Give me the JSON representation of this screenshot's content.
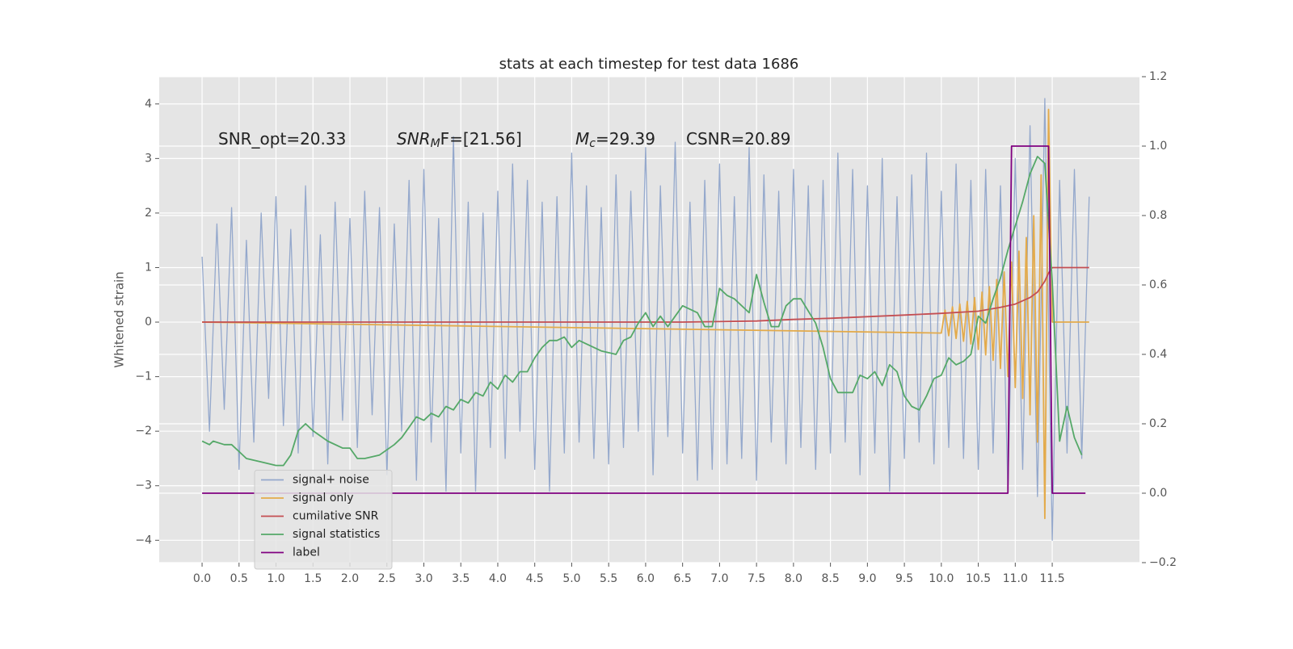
{
  "chart_data": {
    "type": "line",
    "title": "stats at each timestep for test data 1686",
    "ylabel": "Whitened strain",
    "annotations": [
      [
        "SNR_opt=20.33"
      ],
      [
        "SNR",
        "M",
        "F=[21.56]"
      ],
      [
        "M",
        "c",
        "=29.39"
      ],
      [
        "CSNR=20.89"
      ]
    ],
    "xlim": [
      -0.58,
      12.68
    ],
    "ylim": [
      -4.41,
      4.5
    ],
    "y2lim": [
      -0.2,
      1.2
    ],
    "xticks": [
      {
        "value": 0,
        "label": "0.0"
      },
      0.5,
      {
        "value": 1,
        "label": "1.0"
      },
      1.5,
      {
        "value": 2,
        "label": "2.0"
      },
      2.5,
      {
        "value": 3,
        "label": "3.0"
      },
      3.5,
      {
        "value": 4,
        "label": "4.0"
      },
      4.5,
      {
        "value": 5,
        "label": "5.0"
      },
      5.5,
      {
        "value": 6,
        "label": "6.0"
      },
      6.5,
      {
        "value": 7,
        "label": "7.0"
      },
      7.5,
      {
        "value": 8,
        "label": "8.0"
      },
      8.5,
      {
        "value": 9,
        "label": "9.0"
      },
      9.5,
      {
        "value": 10,
        "label": "10.0"
      },
      10.5,
      {
        "value": 11,
        "label": "11.0"
      },
      11.5
    ],
    "yticks": [
      {
        "value": -4,
        "label": "−4"
      },
      {
        "value": -3,
        "label": "−3"
      },
      {
        "value": -2,
        "label": "−2"
      },
      {
        "value": -1,
        "label": "−1"
      },
      0,
      1,
      2,
      3,
      4
    ],
    "y2ticks": [
      {
        "value": -0.2,
        "label": "−0.2"
      },
      {
        "value": 0,
        "label": "0.0"
      },
      0.2,
      0.4,
      0.6,
      0.8,
      {
        "value": 1,
        "label": "1.0"
      },
      1.2
    ],
    "grid": true,
    "legend": "lower left",
    "series": [
      {
        "name": "signal+ noise",
        "color": "#94a8cc",
        "x": [
          0,
          0.1,
          0.2,
          0.3,
          0.4,
          0.5,
          0.6,
          0.7,
          0.8,
          0.9,
          1,
          1.1,
          1.2,
          1.3,
          1.4,
          1.5,
          1.6,
          1.7,
          1.8,
          1.9,
          2,
          2.1,
          2.2,
          2.3,
          2.4,
          2.5,
          2.6,
          2.7,
          2.8,
          2.9,
          3,
          3.1,
          3.2,
          3.3,
          3.4,
          3.5,
          3.6,
          3.7,
          3.8,
          3.9,
          4,
          4.1,
          4.2,
          4.3,
          4.4,
          4.5,
          4.6,
          4.7,
          4.8,
          4.9,
          5,
          5.1,
          5.2,
          5.3,
          5.4,
          5.5,
          5.6,
          5.7,
          5.8,
          5.9,
          6,
          6.1,
          6.2,
          6.3,
          6.4,
          6.5,
          6.6,
          6.7,
          6.8,
          6.9,
          7,
          7.1,
          7.2,
          7.3,
          7.4,
          7.5,
          7.6,
          7.7,
          7.8,
          7.9,
          8,
          8.1,
          8.2,
          8.3,
          8.4,
          8.5,
          8.6,
          8.7,
          8.8,
          8.9,
          9,
          9.1,
          9.2,
          9.3,
          9.4,
          9.5,
          9.6,
          9.7,
          9.8,
          9.9,
          10,
          10.1,
          10.2,
          10.3,
          10.4,
          10.5,
          10.6,
          10.7,
          10.8,
          10.9,
          11,
          11.1,
          11.2,
          11.3,
          11.4,
          11.5,
          11.6,
          11.7,
          11.8,
          11.9,
          12
        ],
        "values": [
          1.2,
          -2.0,
          1.8,
          -1.6,
          2.1,
          -2.7,
          1.5,
          -2.2,
          2.0,
          -1.4,
          2.3,
          -1.9,
          1.7,
          -2.4,
          2.5,
          -2.1,
          1.6,
          -2.6,
          2.2,
          -1.8,
          1.9,
          -2.3,
          2.4,
          -1.7,
          2.1,
          -2.8,
          1.8,
          -2.0,
          2.6,
          -2.9,
          2.8,
          -2.2,
          1.9,
          -3.1,
          3.4,
          -2.4,
          2.2,
          -3.1,
          2.0,
          -2.3,
          2.4,
          -2.5,
          2.9,
          -2.0,
          2.6,
          -2.7,
          2.2,
          -3.1,
          2.3,
          -2.4,
          3.1,
          -2.2,
          2.5,
          -2.5,
          2.1,
          -2.6,
          2.7,
          -2.3,
          2.4,
          -2.0,
          3.2,
          -2.8,
          2.5,
          -2.1,
          3.3,
          -2.4,
          2.2,
          -2.9,
          2.6,
          -2.7,
          2.9,
          -2.6,
          2.3,
          -2.5,
          3.2,
          -2.9,
          2.7,
          -2.2,
          2.4,
          -2.6,
          2.8,
          -2.3,
          2.5,
          -2.7,
          2.6,
          -2.4,
          3.1,
          -2.2,
          2.8,
          -2.8,
          2.5,
          -2.4,
          3.0,
          -3.1,
          2.3,
          -2.5,
          2.7,
          -2.2,
          3.1,
          -2.6,
          2.4,
          -2.3,
          2.9,
          -2.5,
          2.6,
          -2.7,
          2.8,
          -2.4,
          2.5,
          -3.1,
          3.0,
          -2.7,
          3.6,
          -3.2,
          4.1,
          -4.0,
          2.6,
          -2.4,
          2.8,
          -2.5,
          2.3
        ]
      },
      {
        "name": "signal only",
        "color": "#e3aa4a",
        "x": [
          0,
          10,
          10.05,
          10.1,
          10.15,
          10.2,
          10.25,
          10.3,
          10.35,
          10.4,
          10.45,
          10.5,
          10.55,
          10.6,
          10.65,
          10.7,
          10.75,
          10.8,
          10.85,
          10.9,
          10.95,
          11,
          11.05,
          11.1,
          11.15,
          11.2,
          11.25,
          11.3,
          11.35,
          11.4,
          11.45,
          11.5,
          12
        ],
        "values": [
          0,
          -0.2,
          0.22,
          -0.25,
          0.28,
          -0.3,
          0.33,
          -0.35,
          0.38,
          -0.4,
          0.45,
          -0.5,
          0.55,
          -0.6,
          0.65,
          -0.7,
          0.78,
          -0.85,
          0.92,
          -1.0,
          1.1,
          -1.2,
          1.3,
          -1.4,
          1.55,
          -1.7,
          1.95,
          -2.2,
          2.7,
          -3.6,
          3.9,
          0,
          0
        ]
      },
      {
        "name": "cumilative SNR",
        "color": "#c44e52",
        "x": [
          0,
          6.5,
          7.5,
          8,
          8.5,
          9,
          9.5,
          10,
          10.5,
          10.8,
          11,
          11.2,
          11.3,
          11.4,
          11.45,
          11.5,
          12
        ],
        "values": [
          0,
          0,
          0.02,
          0.05,
          0.07,
          0.1,
          0.13,
          0.16,
          0.2,
          0.27,
          0.33,
          0.45,
          0.55,
          0.75,
          0.9,
          1.0,
          1.0
        ]
      },
      {
        "name": "signal statistics",
        "color": "#55a868",
        "axis": "y2",
        "x": [
          0,
          0.1,
          0.15,
          0.3,
          0.4,
          0.5,
          0.6,
          0.8,
          1,
          1.1,
          1.2,
          1.3,
          1.4,
          1.5,
          1.7,
          1.9,
          2,
          2.1,
          2.2,
          2.4,
          2.6,
          2.7,
          2.8,
          2.9,
          3,
          3.1,
          3.2,
          3.3,
          3.4,
          3.5,
          3.6,
          3.7,
          3.8,
          3.9,
          4,
          4.1,
          4.2,
          4.3,
          4.4,
          4.5,
          4.6,
          4.7,
          4.8,
          4.9,
          5,
          5.1,
          5.3,
          5.4,
          5.6,
          5.7,
          5.8,
          5.9,
          6,
          6.1,
          6.2,
          6.3,
          6.4,
          6.5,
          6.7,
          6.8,
          6.9,
          7,
          7.1,
          7.2,
          7.4,
          7.5,
          7.6,
          7.7,
          7.8,
          7.9,
          8,
          8.1,
          8.3,
          8.4,
          8.5,
          8.6,
          8.7,
          8.8,
          8.9,
          9,
          9.1,
          9.2,
          9.3,
          9.4,
          9.5,
          9.6,
          9.7,
          9.8,
          9.9,
          10,
          10.1,
          10.2,
          10.3,
          10.4,
          10.5,
          10.6,
          10.7,
          10.8,
          10.9,
          11,
          11.1,
          11.2,
          11.3,
          11.4,
          11.5,
          11.6,
          11.7,
          11.8,
          11.9
        ],
        "values": [
          0.15,
          0.14,
          0.15,
          0.14,
          0.14,
          0.12,
          0.1,
          0.09,
          0.08,
          0.08,
          0.11,
          0.18,
          0.2,
          0.18,
          0.15,
          0.13,
          0.13,
          0.1,
          0.1,
          0.11,
          0.14,
          0.16,
          0.19,
          0.22,
          0.21,
          0.23,
          0.22,
          0.25,
          0.24,
          0.27,
          0.26,
          0.29,
          0.28,
          0.32,
          0.3,
          0.34,
          0.32,
          0.35,
          0.35,
          0.39,
          0.42,
          0.44,
          0.44,
          0.45,
          0.42,
          0.44,
          0.42,
          0.41,
          0.4,
          0.44,
          0.45,
          0.49,
          0.52,
          0.48,
          0.51,
          0.48,
          0.51,
          0.54,
          0.52,
          0.48,
          0.48,
          0.59,
          0.57,
          0.56,
          0.52,
          0.63,
          0.55,
          0.48,
          0.48,
          0.54,
          0.56,
          0.56,
          0.49,
          0.42,
          0.33,
          0.29,
          0.29,
          0.29,
          0.34,
          0.33,
          0.35,
          0.31,
          0.37,
          0.35,
          0.28,
          0.25,
          0.24,
          0.28,
          0.33,
          0.34,
          0.39,
          0.37,
          0.38,
          0.4,
          0.51,
          0.49,
          0.56,
          0.62,
          0.7,
          0.77,
          0.84,
          0.92,
          0.97,
          0.95,
          0.61,
          0.15,
          0.25,
          0.16,
          0.11
        ]
      },
      {
        "name": "label",
        "color": "#800080",
        "axis": "y2",
        "x": [
          0,
          10.9,
          10.95,
          11.45,
          11.5,
          11.95
        ],
        "values": [
          0,
          0,
          1,
          1,
          0,
          0
        ]
      }
    ]
  }
}
